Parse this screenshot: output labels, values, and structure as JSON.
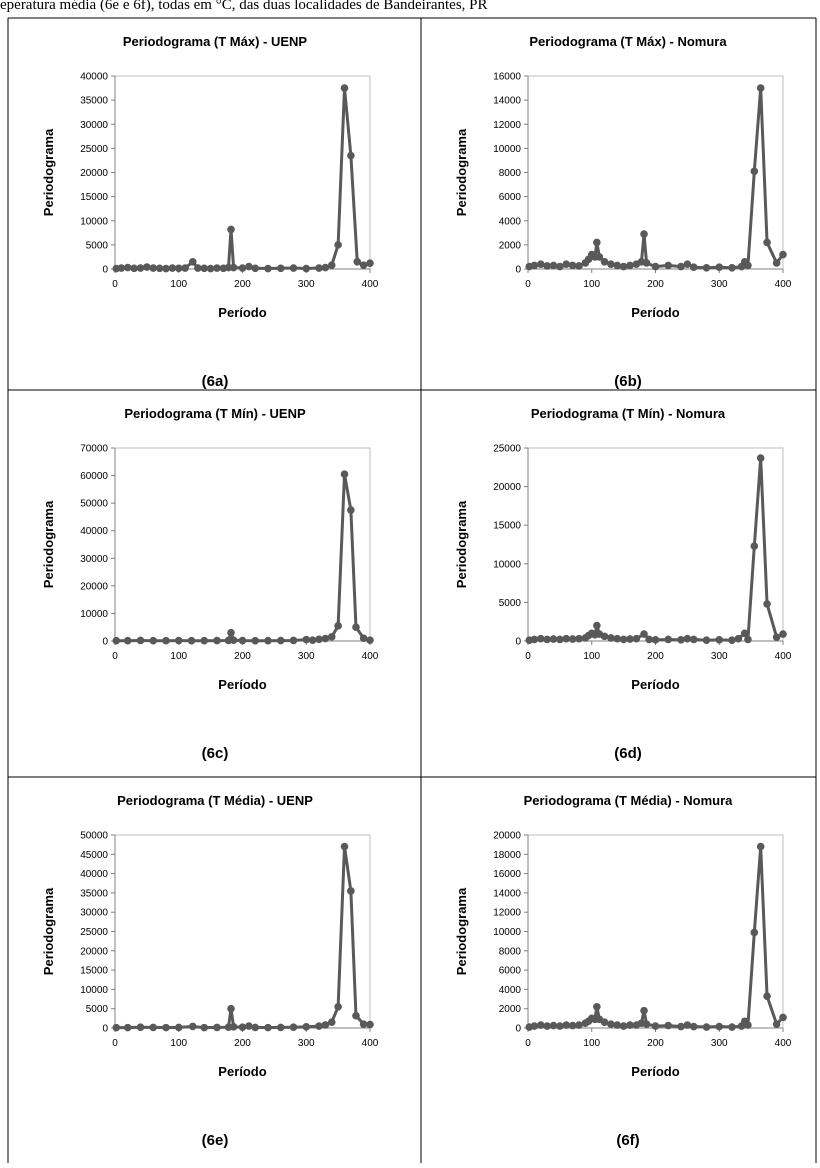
{
  "header": "eperatura média (6e e 6f), todas em °C, das duas localidades de Bandeirantes, PR",
  "chart_data": [
    {
      "type": "line",
      "title": "Periodograma (T Máx) - UENP",
      "xlabel": "Período",
      "ylabel": "Periodograma",
      "caption": "(6a)",
      "color": "#595959",
      "x": [
        2,
        10,
        20,
        30,
        40,
        50,
        60,
        70,
        80,
        90,
        100,
        110,
        122,
        130,
        140,
        150,
        160,
        170,
        178,
        182,
        186,
        200,
        210,
        220,
        240,
        260,
        280,
        300,
        320,
        330,
        340,
        350,
        360,
        370,
        380,
        390,
        400
      ],
      "values": [
        100,
        200,
        300,
        150,
        200,
        400,
        200,
        150,
        100,
        200,
        150,
        200,
        1500,
        200,
        150,
        100,
        200,
        150,
        300,
        8200,
        300,
        200,
        500,
        150,
        100,
        150,
        200,
        100,
        200,
        300,
        800,
        5000,
        37500,
        23500,
        1500,
        800,
        1200
      ],
      "xlim": [
        0,
        400
      ],
      "ylim": [
        0,
        40000
      ],
      "xticks": [
        0,
        100,
        200,
        300,
        400
      ],
      "yticks": [
        0,
        5000,
        10000,
        15000,
        20000,
        25000,
        30000,
        35000,
        40000
      ]
    },
    {
      "type": "line",
      "title": "Periodograma (T Máx) - Nomura",
      "xlabel": "Período",
      "ylabel": "Periodograma",
      "caption": "(6b)",
      "color": "#595959",
      "x": [
        2,
        10,
        20,
        30,
        40,
        50,
        60,
        70,
        80,
        90,
        95,
        100,
        105,
        108,
        112,
        120,
        130,
        140,
        150,
        160,
        170,
        178,
        182,
        186,
        200,
        220,
        240,
        250,
        260,
        280,
        300,
        320,
        335,
        340,
        345,
        355,
        365,
        375,
        390,
        400
      ],
      "values": [
        200,
        300,
        400,
        250,
        300,
        200,
        400,
        300,
        250,
        500,
        800,
        1200,
        1000,
        2200,
        1000,
        600,
        400,
        300,
        200,
        300,
        400,
        600,
        2900,
        500,
        200,
        300,
        200,
        400,
        150,
        100,
        150,
        100,
        200,
        600,
        300,
        8100,
        15000,
        2200,
        500,
        1200
      ],
      "xlim": [
        0,
        400
      ],
      "ylim": [
        0,
        16000
      ],
      "xticks": [
        0,
        100,
        200,
        300,
        400
      ],
      "yticks": [
        0,
        2000,
        4000,
        6000,
        8000,
        10000,
        12000,
        14000,
        16000
      ]
    },
    {
      "type": "line",
      "title": "Periodograma (T Mín) - UENP",
      "xlabel": "Período",
      "ylabel": "Periodograma",
      "caption": "(6c)",
      "color": "#595959",
      "x": [
        2,
        20,
        40,
        60,
        80,
        100,
        120,
        140,
        160,
        178,
        182,
        186,
        200,
        220,
        240,
        260,
        280,
        300,
        310,
        320,
        330,
        340,
        350,
        360,
        370,
        378,
        390,
        400
      ],
      "values": [
        100,
        100,
        200,
        100,
        100,
        150,
        100,
        100,
        150,
        200,
        3000,
        300,
        150,
        100,
        100,
        150,
        200,
        500,
        300,
        600,
        900,
        1500,
        5500,
        60500,
        47500,
        5000,
        1000,
        300
      ],
      "xlim": [
        0,
        400
      ],
      "ylim": [
        0,
        70000
      ],
      "xticks": [
        0,
        100,
        200,
        300,
        400
      ],
      "yticks": [
        0,
        10000,
        20000,
        30000,
        40000,
        50000,
        60000,
        70000
      ]
    },
    {
      "type": "line",
      "title": "Periodograma (T Mín) - Nomura",
      "xlabel": "Período",
      "ylabel": "Periodograma",
      "caption": "(6d)",
      "color": "#595959",
      "x": [
        2,
        10,
        20,
        30,
        40,
        50,
        60,
        70,
        80,
        90,
        95,
        100,
        105,
        108,
        112,
        120,
        130,
        140,
        150,
        160,
        170,
        182,
        190,
        200,
        220,
        240,
        250,
        260,
        280,
        300,
        320,
        330,
        340,
        345,
        355,
        365,
        375,
        390,
        400
      ],
      "values": [
        100,
        200,
        300,
        200,
        250,
        200,
        300,
        250,
        300,
        400,
        700,
        1000,
        800,
        2000,
        900,
        600,
        400,
        300,
        200,
        250,
        300,
        900,
        200,
        150,
        200,
        150,
        300,
        200,
        100,
        150,
        100,
        300,
        1000,
        200,
        12300,
        23700,
        4800,
        500,
        900
      ],
      "xlim": [
        0,
        400
      ],
      "ylim": [
        0,
        25000
      ],
      "xticks": [
        0,
        100,
        200,
        300,
        400
      ],
      "yticks": [
        0,
        5000,
        10000,
        15000,
        20000,
        25000
      ]
    },
    {
      "type": "line",
      "title": "Periodograma (T Média) - UENP",
      "xlabel": "Período",
      "ylabel": "Periodograma",
      "caption": "(6e)",
      "color": "#595959",
      "x": [
        2,
        20,
        40,
        60,
        80,
        100,
        122,
        140,
        160,
        178,
        182,
        186,
        200,
        210,
        220,
        240,
        260,
        280,
        300,
        320,
        330,
        340,
        350,
        360,
        370,
        378,
        390,
        400
      ],
      "values": [
        100,
        100,
        200,
        150,
        100,
        150,
        400,
        100,
        150,
        200,
        5000,
        300,
        200,
        500,
        150,
        100,
        150,
        200,
        300,
        500,
        800,
        1500,
        5500,
        47000,
        35500,
        3200,
        1000,
        900
      ],
      "xlim": [
        0,
        400
      ],
      "ylim": [
        0,
        50000
      ],
      "xticks": [
        0,
        100,
        200,
        300,
        400
      ],
      "yticks": [
        0,
        5000,
        10000,
        15000,
        20000,
        25000,
        30000,
        35000,
        40000,
        45000,
        50000
      ]
    },
    {
      "type": "line",
      "title": "Periodograma (T Média) - Nomura",
      "xlabel": "Período",
      "ylabel": "Periodograma",
      "caption": "(6f)",
      "color": "#595959",
      "x": [
        2,
        10,
        20,
        30,
        40,
        50,
        60,
        70,
        80,
        90,
        95,
        100,
        105,
        108,
        112,
        120,
        130,
        140,
        150,
        160,
        170,
        178,
        182,
        186,
        200,
        220,
        240,
        250,
        260,
        280,
        300,
        320,
        335,
        340,
        345,
        355,
        365,
        375,
        390,
        400
      ],
      "values": [
        100,
        200,
        300,
        200,
        250,
        200,
        300,
        250,
        300,
        500,
        700,
        1000,
        900,
        2200,
        900,
        600,
        400,
        300,
        200,
        300,
        300,
        500,
        1800,
        400,
        200,
        250,
        150,
        300,
        150,
        100,
        150,
        100,
        200,
        700,
        300,
        9900,
        18800,
        3300,
        400,
        1100
      ],
      "xlim": [
        0,
        400
      ],
      "ylim": [
        0,
        20000
      ],
      "xticks": [
        0,
        100,
        200,
        300,
        400
      ],
      "yticks": [
        0,
        2000,
        4000,
        6000,
        8000,
        10000,
        12000,
        14000,
        16000,
        18000,
        20000
      ]
    }
  ]
}
